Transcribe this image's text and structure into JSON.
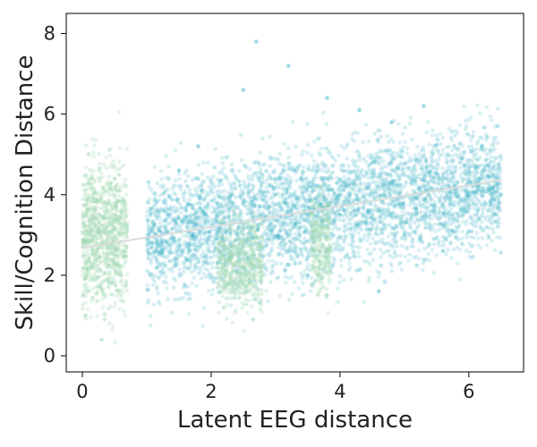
{
  "chart_data": {
    "type": "scatter",
    "title": "",
    "xlabel": "Latent EEG distance",
    "ylabel": "Skill/Cognition Distance",
    "xlim": [
      -0.25,
      6.85
    ],
    "ylim": [
      -0.4,
      8.5
    ],
    "xticks": [
      0,
      2,
      4,
      6
    ],
    "yticks": [
      0,
      2,
      4,
      6,
      8
    ],
    "xtick_labels": [
      "0",
      "2",
      "4",
      "6"
    ],
    "ytick_labels": [
      "0",
      "2",
      "4",
      "6",
      "8"
    ],
    "grid": false,
    "legend": "none",
    "series": [
      {
        "color": "#3fb5c6",
        "opacity": 0.2,
        "description_points": "dense point cloud",
        "x_range": [
          1.0,
          6.5
        ],
        "y_center_line": {
          "x0": 1.2,
          "y0": 3.0,
          "x1": 6.5,
          "y1": 4.3
        },
        "y_spread": 1.2,
        "points": [
          [
            1.2,
            3.1
          ],
          [
            1.5,
            4.6
          ],
          [
            1.8,
            5.2
          ],
          [
            2.1,
            2.3
          ],
          [
            2.5,
            6.6
          ],
          [
            2.7,
            7.8
          ],
          [
            3.0,
            4.0
          ],
          [
            3.2,
            7.2
          ],
          [
            3.5,
            2.0
          ],
          [
            3.8,
            6.4
          ],
          [
            4.0,
            3.5
          ],
          [
            4.3,
            6.1
          ],
          [
            4.6,
            1.6
          ],
          [
            4.8,
            5.8
          ],
          [
            5.0,
            3.0
          ],
          [
            5.3,
            6.2
          ],
          [
            5.6,
            2.6
          ],
          [
            5.9,
            4.9
          ],
          [
            6.2,
            5.2
          ],
          [
            6.5,
            4.0
          ]
        ]
      },
      {
        "color": "#a6d9b7",
        "opacity": 0.3,
        "clusters": [
          {
            "x_range": [
              0.0,
              0.7
            ],
            "y_range": [
              0.2,
              5.8
            ]
          },
          {
            "x_range": [
              2.1,
              2.8
            ],
            "y_range": [
              0.6,
              4.0
            ]
          },
          {
            "x_range": [
              3.55,
              3.85
            ],
            "y_range": [
              1.0,
              4.6
            ]
          }
        ],
        "points": [
          [
            0.05,
            1.0
          ],
          [
            0.1,
            5.0
          ],
          [
            0.2,
            2.5
          ],
          [
            0.3,
            0.4
          ],
          [
            0.35,
            3.8
          ],
          [
            0.45,
            1.8
          ],
          [
            0.5,
            4.4
          ],
          [
            0.6,
            2.0
          ],
          [
            2.2,
            1.2
          ],
          [
            2.35,
            3.6
          ],
          [
            2.5,
            2.2
          ],
          [
            2.65,
            0.9
          ],
          [
            3.6,
            2.6
          ],
          [
            3.7,
            4.2
          ],
          [
            3.8,
            1.5
          ]
        ]
      }
    ],
    "trendline": {
      "color": "#dcdcdc",
      "x": [
        0.0,
        6.5
      ],
      "y": [
        2.68,
        4.36
      ]
    }
  }
}
